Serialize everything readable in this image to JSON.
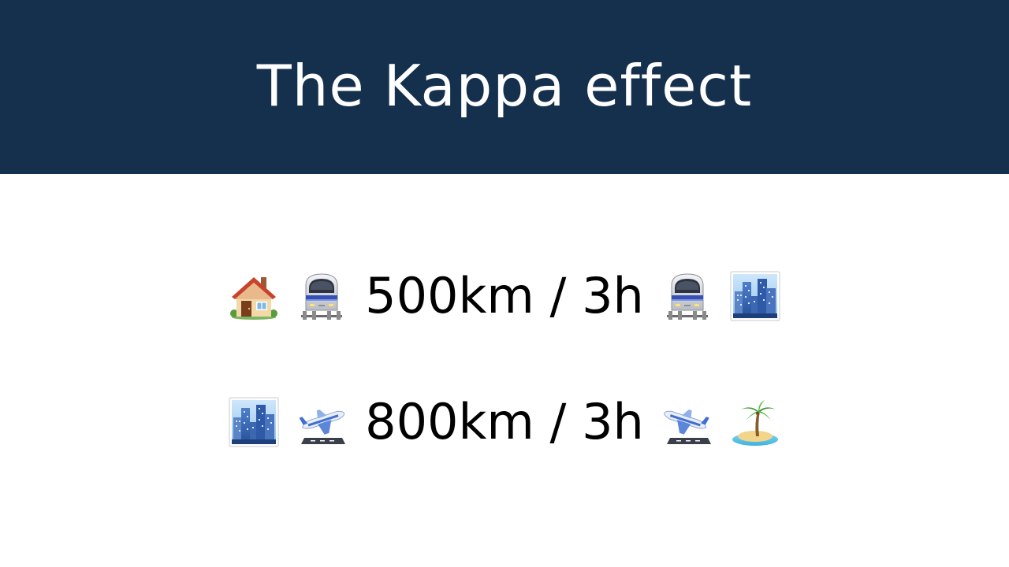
{
  "slide": {
    "title": "The Kappa effect",
    "header_color": "#15304d"
  },
  "rows": [
    {
      "text": "500km / 3h",
      "icons": [
        "house-icon",
        "train-icon",
        "train-icon",
        "cityscape-icon"
      ]
    },
    {
      "text": "800km / 3h",
      "icons": [
        "cityscape-icon",
        "airplane-departure-icon",
        "airplane-arrival-icon",
        "island-icon"
      ]
    }
  ]
}
